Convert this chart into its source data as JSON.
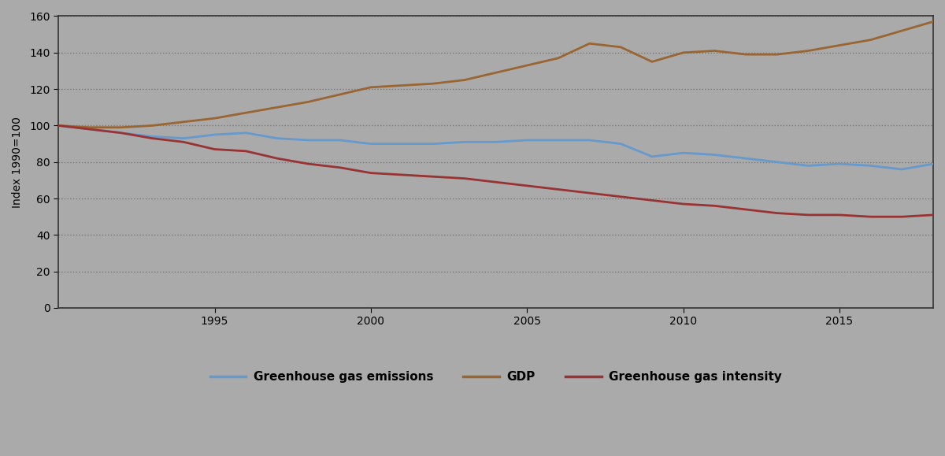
{
  "years": [
    1990,
    1991,
    1992,
    1993,
    1994,
    1995,
    1996,
    1997,
    1998,
    1999,
    2000,
    2001,
    2002,
    2003,
    2004,
    2005,
    2006,
    2007,
    2008,
    2009,
    2010,
    2011,
    2012,
    2013,
    2014,
    2015,
    2016,
    2017,
    2018
  ],
  "ghg_emissions": [
    100,
    98,
    96,
    94,
    93,
    95,
    96,
    93,
    92,
    92,
    90,
    90,
    90,
    91,
    91,
    92,
    92,
    92,
    90,
    83,
    85,
    84,
    82,
    80,
    78,
    79,
    78,
    76,
    79
  ],
  "gdp": [
    100,
    99,
    99,
    100,
    102,
    104,
    107,
    110,
    113,
    117,
    121,
    122,
    123,
    125,
    129,
    133,
    137,
    145,
    143,
    135,
    140,
    141,
    139,
    139,
    141,
    144,
    147,
    152,
    157
  ],
  "ghg_intensity": [
    100,
    98,
    96,
    93,
    91,
    87,
    86,
    82,
    79,
    77,
    74,
    73,
    72,
    71,
    69,
    67,
    65,
    63,
    61,
    59,
    57,
    56,
    54,
    52,
    51,
    51,
    50,
    50,
    51
  ],
  "ghg_color": "#6699cc",
  "gdp_color": "#996633",
  "intensity_color": "#993333",
  "outer_bg_color": "#aaaaaa",
  "plot_bg_color": "#aaaaaa",
  "grid_color": "#888888",
  "ylabel": "Index 1990=100",
  "ylim": [
    0,
    160
  ],
  "xlim": [
    1990,
    2018
  ],
  "yticks": [
    0,
    20,
    40,
    60,
    80,
    100,
    120,
    140,
    160
  ],
  "xticks": [
    1995,
    2000,
    2005,
    2010,
    2015
  ],
  "legend_labels": [
    "Greenhouse gas emissions",
    "GDP",
    "Greenhouse gas intensity"
  ],
  "line_width": 2.0
}
